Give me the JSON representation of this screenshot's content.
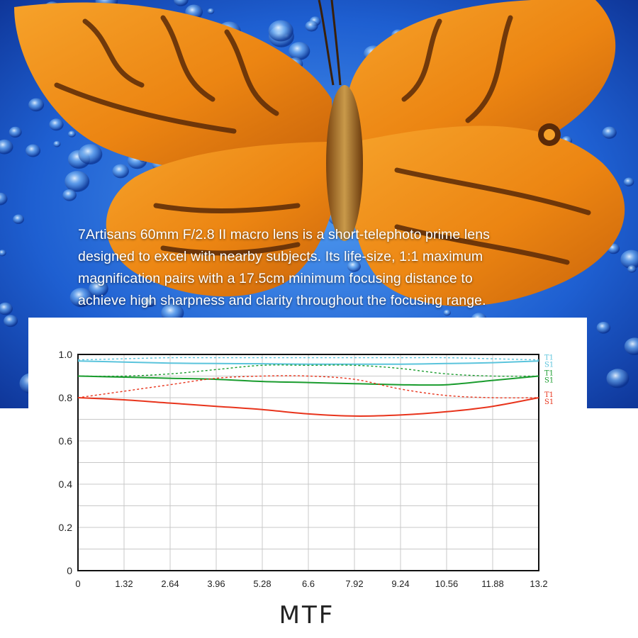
{
  "hero": {
    "lines": [
      "7Artisans  60mm F/2.8 II macro lens is a short-telephoto prime lens",
      "designed to excel with nearby subjects. Its life-size, 1:1 maximum",
      "magnification pairs with a 17.5cm minimum focusing distance to",
      "achieve high sharpness and clarity throughout the focusing range."
    ],
    "colors": {
      "water": "#1e5fd1",
      "wing": "#f08a14",
      "wing_dark": "#5a2a08"
    }
  },
  "chart_data": {
    "type": "line",
    "title": "MTF",
    "xlabel": "",
    "ylabel": "",
    "xlim": [
      0,
      13.2
    ],
    "ylim": [
      0,
      1.0
    ],
    "x_ticks": [
      "0",
      "1.32",
      "2.64",
      "3.96",
      "5.28",
      "6.6",
      "7.92",
      "9.24",
      "10.56",
      "11.88",
      "13.2"
    ],
    "y_ticks": [
      "0",
      "0.2",
      "0.4",
      "0.6",
      "0.8",
      "1.0"
    ],
    "grid": true,
    "x": [
      0,
      1.32,
      2.64,
      3.96,
      5.28,
      6.6,
      7.92,
      9.24,
      10.56,
      11.88,
      13.2
    ],
    "series": [
      {
        "name": "T1",
        "group": "cyan",
        "color": "#5bc4dc",
        "style": "solid",
        "values": [
          0.97,
          0.965,
          0.96,
          0.958,
          0.957,
          0.955,
          0.955,
          0.955,
          0.958,
          0.962,
          0.97
        ]
      },
      {
        "name": "S1",
        "group": "cyan",
        "color": "#5bc4dc",
        "style": "dashed",
        "values": [
          0.975,
          0.98,
          0.985,
          0.985,
          0.985,
          0.985,
          0.985,
          0.985,
          0.985,
          0.98,
          0.975
        ]
      },
      {
        "name": "T1",
        "group": "green",
        "color": "#1a9c2e",
        "style": "solid",
        "values": [
          0.9,
          0.895,
          0.89,
          0.885,
          0.875,
          0.87,
          0.865,
          0.86,
          0.86,
          0.88,
          0.9
        ]
      },
      {
        "name": "S1",
        "group": "green",
        "color": "#1a9c2e",
        "style": "dashed",
        "values": [
          0.9,
          0.9,
          0.91,
          0.93,
          0.95,
          0.95,
          0.95,
          0.935,
          0.91,
          0.9,
          0.9
        ]
      },
      {
        "name": "T1",
        "group": "red",
        "color": "#e8341c",
        "style": "solid",
        "values": [
          0.8,
          0.79,
          0.775,
          0.76,
          0.745,
          0.725,
          0.715,
          0.72,
          0.735,
          0.76,
          0.8
        ]
      },
      {
        "name": "S1",
        "group": "red",
        "color": "#e8341c",
        "style": "dashed",
        "values": [
          0.8,
          0.83,
          0.86,
          0.89,
          0.9,
          0.9,
          0.885,
          0.84,
          0.81,
          0.8,
          0.8
        ]
      }
    ]
  }
}
